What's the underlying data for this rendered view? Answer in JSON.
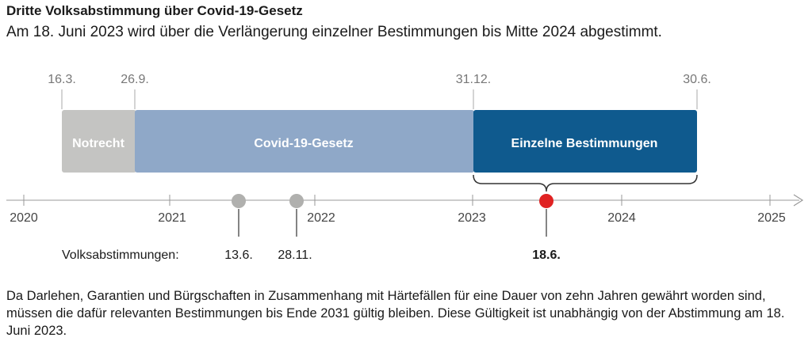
{
  "header": {
    "title": "Dritte Volksabstimmung über Covid-19-Gesetz",
    "subtitle": "Am 18. Juni 2023 wird über die Verlängerung einzelner Bestimmungen bis Mitte 2024 abgestimmt."
  },
  "timeline": {
    "period_dates": [
      "16.3.",
      "26.9.",
      "31.12.",
      "30.6."
    ],
    "periods": [
      {
        "label": "Notrecht",
        "start": "2020-03-16",
        "end": "2020-09-26",
        "color": "#c4c4c2"
      },
      {
        "label": "Covid-19-Gesetz",
        "start": "2020-09-26",
        "end": "2022-12-31",
        "color": "#8fa8c8"
      },
      {
        "label": "Einzelne Bestimmungen",
        "start": "2022-12-31",
        "end": "2024-06-30",
        "color": "#0f5a8e"
      }
    ],
    "years": [
      "2020",
      "2021",
      "2022",
      "2023",
      "2024",
      "2025"
    ],
    "votes_label": "Volksabstimmungen:",
    "votes": [
      {
        "label": "13.6.",
        "date": "2021-06-13",
        "color": "#b0b0ae",
        "bold": false
      },
      {
        "label": "28.11.",
        "date": "2021-11-28",
        "color": "#b0b0ae",
        "bold": false
      },
      {
        "label": "18.6.",
        "date": "2023-06-18",
        "color": "#e02222",
        "bold": true
      }
    ]
  },
  "footnote": "Da Darlehen, Garantien und Bürgschaften in Zusammenhang mit Härtefällen für eine Dauer von zehn Jahren gewährt worden sind, müssen die dafür relevanten Bestimmungen bis Ende 2031 gültig bleiben. Diese Gültigkeit ist unabhängig von der Abstimmung am 18. Juni 2023."
}
